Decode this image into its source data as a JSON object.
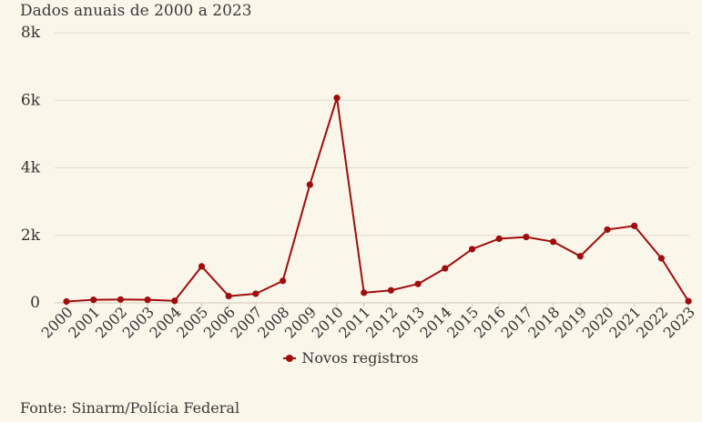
{
  "subtitle": "Dados anuais de 2000 a 2023",
  "source": "Fonte: Sinarm/Polícia Federal",
  "colors": {
    "line": "#a00d0d",
    "grid": "#e2dccd",
    "background": "#fbf6ea",
    "text": "#333333"
  },
  "chart_data": {
    "type": "line",
    "title": "",
    "subtitle": "Dados anuais de 2000 a 2023",
    "xlabel": "",
    "ylabel": "",
    "ylim": [
      0,
      8000
    ],
    "y_ticks": [
      0,
      2000,
      4000,
      6000,
      8000
    ],
    "y_tick_labels": [
      "0",
      "2k",
      "4k",
      "6k",
      "8k"
    ],
    "grid": true,
    "legend_position": "bottom",
    "categories": [
      "2000",
      "2001",
      "2002",
      "2003",
      "2004",
      "2005",
      "2006",
      "2007",
      "2008",
      "2009",
      "2010",
      "2011",
      "2012",
      "2013",
      "2014",
      "2015",
      "2016",
      "2017",
      "2018",
      "2019",
      "2020",
      "2021",
      "2022",
      "2023"
    ],
    "series": [
      {
        "name": "Novos registros",
        "values": [
          40,
          90,
          100,
          90,
          60,
          1080,
          200,
          270,
          650,
          3500,
          6070,
          300,
          370,
          560,
          1020,
          1590,
          1900,
          1950,
          1810,
          1380,
          2170,
          2280,
          1320,
          50
        ]
      }
    ]
  }
}
